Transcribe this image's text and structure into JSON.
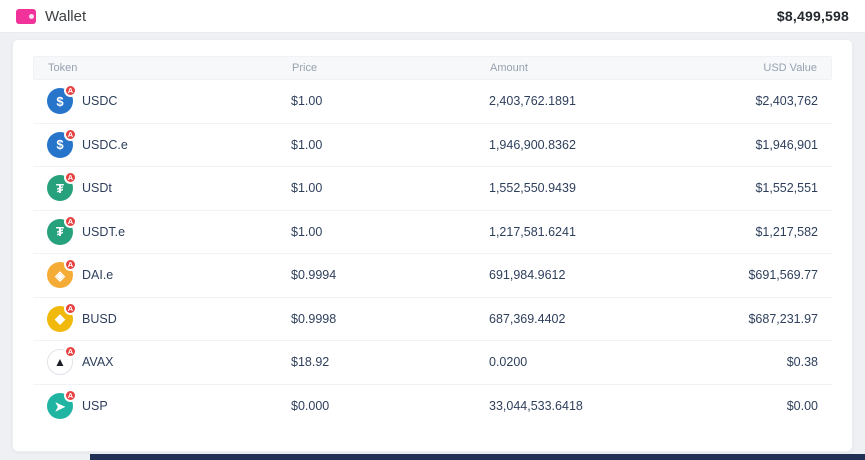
{
  "header": {
    "title": "Wallet",
    "total": "$8,499,598",
    "icon_color": "#f2329b"
  },
  "colors": {
    "badge_bg": "#e84142"
  },
  "table": {
    "badge_label": "A",
    "columns": [
      "Token",
      "Price",
      "Amount",
      "USD Value"
    ],
    "rows": [
      {
        "token": "USDC",
        "price": "$1.00",
        "amount": "2,403,762.1891",
        "usd": "$2,403,762",
        "icon_name": "usdc-icon",
        "icon_bg": "#2775ca",
        "icon_fg": "#ffffff",
        "glyph": "$",
        "icon_border": false
      },
      {
        "token": "USDC.e",
        "price": "$1.00",
        "amount": "1,946,900.8362",
        "usd": "$1,946,901",
        "icon_name": "usdce-icon",
        "icon_bg": "#2775ca",
        "icon_fg": "#ffffff",
        "glyph": "$",
        "icon_border": false
      },
      {
        "token": "USDt",
        "price": "$1.00",
        "amount": "1,552,550.9439",
        "usd": "$1,552,551",
        "icon_name": "usdt-icon",
        "icon_bg": "#26a17b",
        "icon_fg": "#ffffff",
        "glyph": "₮",
        "icon_border": false
      },
      {
        "token": "USDT.e",
        "price": "$1.00",
        "amount": "1,217,581.6241",
        "usd": "$1,217,582",
        "icon_name": "usdte-icon",
        "icon_bg": "#26a17b",
        "icon_fg": "#ffffff",
        "glyph": "₮",
        "icon_border": false
      },
      {
        "token": "DAI.e",
        "price": "$0.9994",
        "amount": "691,984.9612",
        "usd": "$691,569.77",
        "icon_name": "daie-icon",
        "icon_bg": "#f5ac37",
        "icon_fg": "#ffffff",
        "glyph": "◈",
        "icon_border": false
      },
      {
        "token": "BUSD",
        "price": "$0.9998",
        "amount": "687,369.4402",
        "usd": "$687,231.97",
        "icon_name": "busd-icon",
        "icon_bg": "#f0b90b",
        "icon_fg": "#ffffff",
        "glyph": "◆",
        "icon_border": false
      },
      {
        "token": "AVAX",
        "price": "$18.92",
        "amount": "0.0200",
        "usd": "$0.38",
        "icon_name": "avax-icon",
        "icon_bg": "#ffffff",
        "icon_fg": "#1b1e24",
        "glyph": "▲",
        "icon_border": true
      },
      {
        "token": "USP",
        "price": "$0.000",
        "amount": "33,044,533.6418",
        "usd": "$0.00",
        "icon_name": "usp-icon",
        "icon_bg": "#1fb5a2",
        "icon_fg": "#ffffff",
        "glyph": "➤",
        "icon_border": false
      }
    ]
  }
}
